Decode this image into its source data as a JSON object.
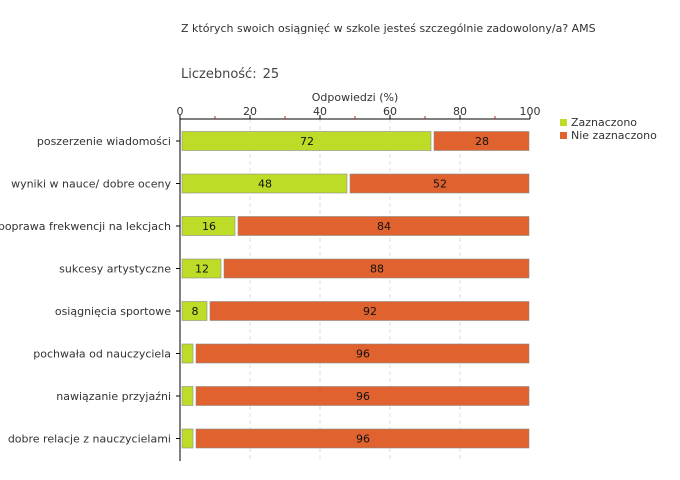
{
  "title": "Z których swoich osiągnięć w szkole jesteś szczególnie zadowolony/a? AMS",
  "count": {
    "label": "Liczebność:",
    "value": "25"
  },
  "colors": {
    "selected": "#bddc28",
    "not_selected": "#e0622e",
    "axis": "#000000",
    "grid": "#dddddd"
  },
  "legend": [
    {
      "label": "Zaznaczono",
      "color": "#bddc28"
    },
    {
      "label": "Nie zaznaczono",
      "color": "#e0622e"
    }
  ],
  "chart_data": {
    "type": "bar",
    "orientation": "horizontal",
    "stacked": true,
    "xlabel": "Odpowiedzi (%)",
    "xlim": [
      0,
      100
    ],
    "ticks": [
      0,
      20,
      40,
      60,
      80,
      100
    ],
    "categories": [
      "poszerzenie wiadomości",
      "wyniki w nauce/ dobre oceny",
      "poprawa frekwencji na lekcjach",
      "sukcesy artystyczne",
      "osiągnięcia sportowe",
      "pochwała od nauczyciela",
      "nawiązanie przyjaźni",
      "dobre relacje z nauczycielami"
    ],
    "series": [
      {
        "name": "Zaznaczono",
        "values": [
          72,
          48,
          16,
          12,
          8,
          4,
          4,
          4
        ]
      },
      {
        "name": "Nie zaznaczono",
        "values": [
          28,
          52,
          84,
          88,
          92,
          96,
          96,
          96
        ]
      }
    ],
    "data_labels": [
      [
        "72",
        "28"
      ],
      [
        "48",
        "52"
      ],
      [
        "16",
        "84"
      ],
      [
        "12",
        "88"
      ],
      [
        "8",
        "92"
      ],
      [
        "",
        "96"
      ],
      [
        "",
        "96"
      ],
      [
        "",
        "96"
      ]
    ],
    "legend_position": "right"
  }
}
